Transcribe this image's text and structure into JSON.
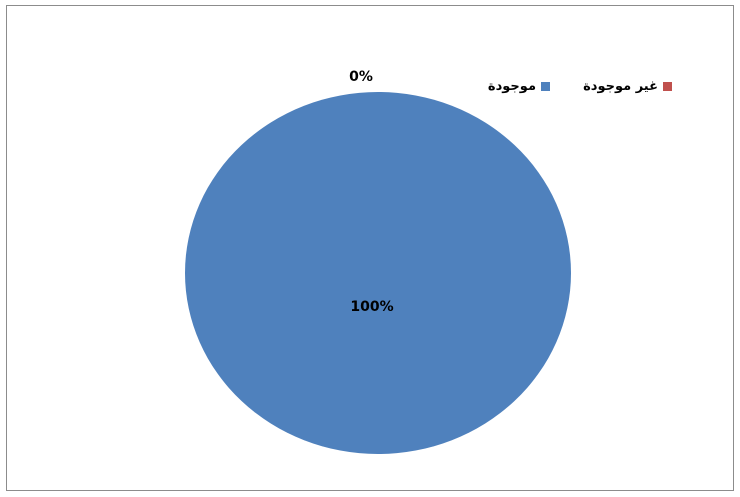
{
  "chart_data": {
    "type": "pie",
    "slices": [
      {
        "label": "غير موجودة",
        "value": 0,
        "value_label": "0%",
        "color": "#c0504d"
      },
      {
        "label": "موجودة",
        "value": 100,
        "value_label": "100%",
        "color": "#4f81bd"
      }
    ],
    "legend_position": "top-right",
    "title": ""
  }
}
